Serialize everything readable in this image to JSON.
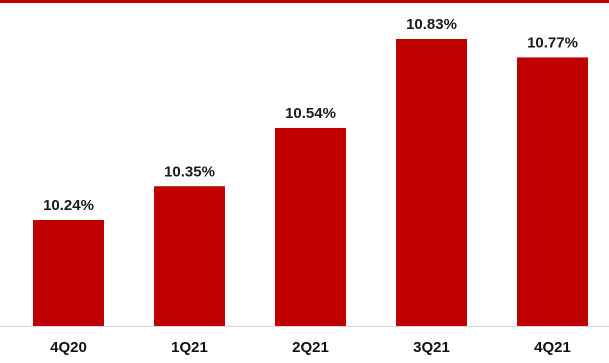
{
  "chart_data": {
    "type": "bar",
    "title": "",
    "xlabel": "",
    "ylabel": "",
    "categories": [
      "4Q20",
      "1Q21",
      "2Q21",
      "3Q21",
      "4Q21"
    ],
    "values": [
      10.24,
      10.35,
      10.54,
      10.83,
      10.77
    ],
    "value_labels": [
      "10.24%",
      "10.35%",
      "10.54%",
      "10.83%",
      "10.77%"
    ],
    "grid": false,
    "legend": "none"
  },
  "colors": {
    "bar": "#c00000",
    "top_rule": "#c00000",
    "axis": "#d9d9d9"
  }
}
